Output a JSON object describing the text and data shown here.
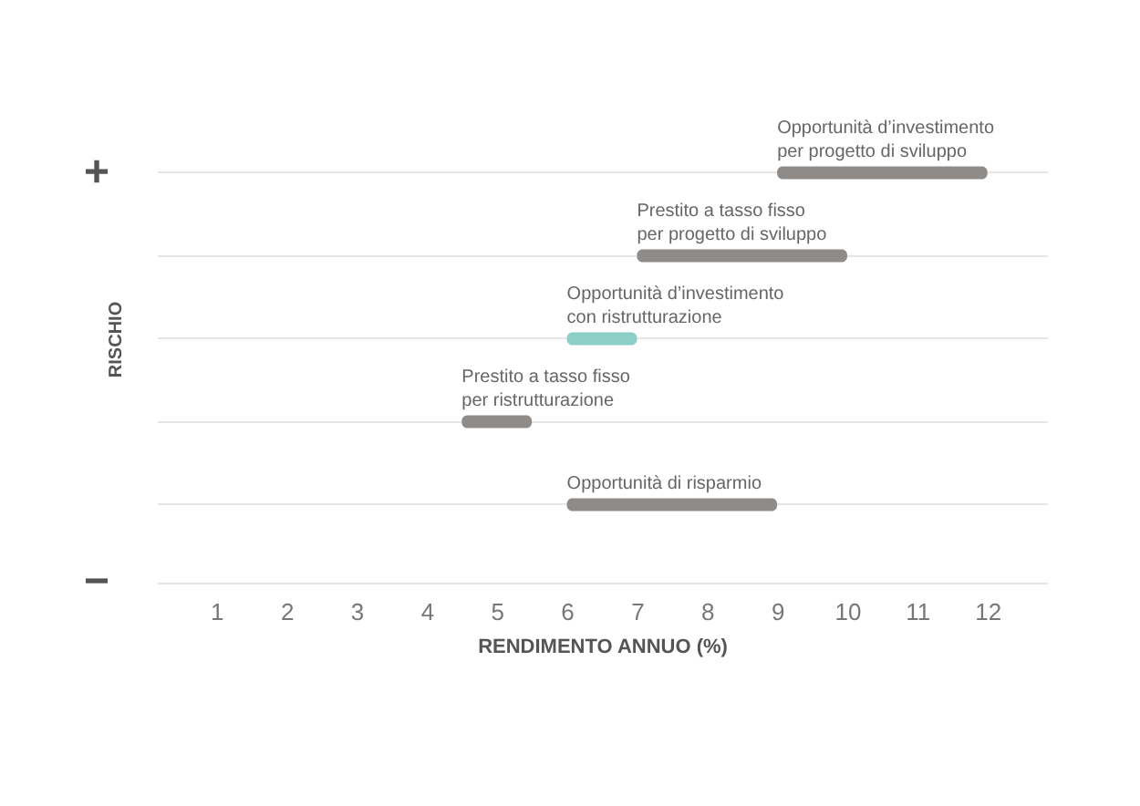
{
  "chart_data": {
    "type": "bar",
    "orientation": "horizontal",
    "xlabel": "RENDIMENTO ANNUO (%)",
    "ylabel": "RISCHIO",
    "categories": [
      "Opportunità d’investimento\nper progetto di sviluppo",
      "Prestito a tasso fisso\nper progetto di sviluppo",
      "Opportunità d’investimento\ncon ristrutturazione",
      "Prestito a tasso fisso\nper ristrutturazione",
      "Opportunità di risparmio"
    ],
    "base": [
      9,
      7,
      6,
      4.5,
      6
    ],
    "values": [
      3,
      3,
      1,
      1,
      3
    ],
    "colors": [
      "#8f8b89",
      "#8f8b89",
      "#8ccfc7",
      "#8f8b89",
      "#8f8b89"
    ],
    "xlim": [
      0.15,
      12.85
    ],
    "xticks": [
      1,
      2,
      3,
      4,
      5,
      6,
      7,
      8,
      9,
      10,
      11,
      12
    ],
    "grid": "y",
    "tick_labels": "x",
    "annotations": [
      "+",
      "−"
    ]
  }
}
